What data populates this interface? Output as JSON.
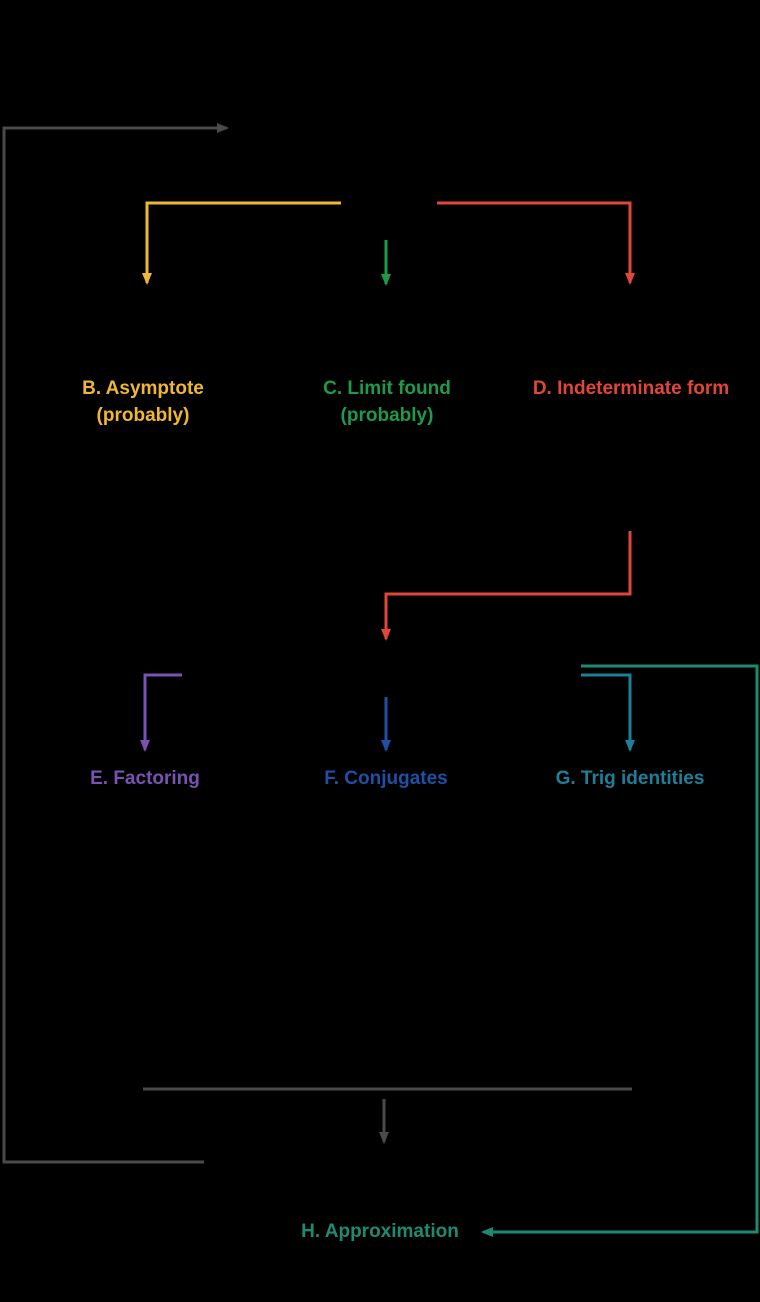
{
  "colors": {
    "background": "#000000",
    "gray": "#4a4a4a",
    "yellow": "#f0b732",
    "green": "#1f9a4a",
    "red": "#e0463a",
    "purple": "#7a52b3",
    "blue": "#1f4fa6",
    "teal": "#1d7f99",
    "seagreen": "#1f8a72"
  },
  "nodes": {
    "b": {
      "line1": "B. Asymptote",
      "line2": "(probably)"
    },
    "c": {
      "line1": "C. Limit found",
      "line2": "(probably)"
    },
    "d": {
      "line1": "D. Indeterminate form"
    },
    "e": {
      "line1": "E. Factoring"
    },
    "f": {
      "line1": "F. Conjugates"
    },
    "g": {
      "line1": "G. Trig identities"
    },
    "h": {
      "line1": "H. Approximation"
    }
  }
}
